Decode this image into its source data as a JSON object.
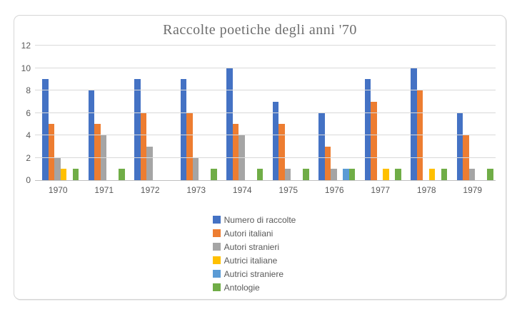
{
  "chart_data": {
    "type": "bar",
    "title": "Raccolte poetiche degli anni '70",
    "categories": [
      "1970",
      "1971",
      "1972",
      "1973",
      "1974",
      "1975",
      "1976",
      "1977",
      "1978",
      "1979"
    ],
    "series": [
      {
        "name": "Numero di raccolte",
        "color": "#4472C4",
        "values": [
          9,
          8,
          9,
          9,
          10,
          7,
          6,
          9,
          10,
          6
        ]
      },
      {
        "name": "Autori italiani",
        "color": "#ED7D31",
        "values": [
          5,
          5,
          6,
          6,
          5,
          5,
          3,
          7,
          8,
          4
        ]
      },
      {
        "name": "Autori stranieri",
        "color": "#A5A5A5",
        "values": [
          2,
          4,
          3,
          2,
          4,
          1,
          1,
          0,
          0,
          1
        ]
      },
      {
        "name": "Autrici italiane",
        "color": "#FFC000",
        "values": [
          1,
          0,
          0,
          0,
          0,
          0,
          0,
          1,
          1,
          0
        ]
      },
      {
        "name": "Autrici straniere",
        "color": "#5B9BD5",
        "values": [
          0,
          0,
          0,
          0,
          0,
          0,
          1,
          0,
          0,
          0
        ]
      },
      {
        "name": "Antologie",
        "color": "#70AD47",
        "values": [
          1,
          1,
          0,
          1,
          1,
          1,
          1,
          1,
          1,
          1
        ]
      }
    ],
    "ylim": [
      0,
      12
    ],
    "yticks": [
      0,
      2,
      4,
      6,
      8,
      10,
      12
    ],
    "grid": true,
    "legend_position": "bottom",
    "colors": {
      "gridline": "#D9D9D9",
      "axis_line": "#BFBFBF",
      "tick_text": "#595959",
      "title_text": "#6D6D6D",
      "card_border": "#D6D6D6"
    }
  }
}
